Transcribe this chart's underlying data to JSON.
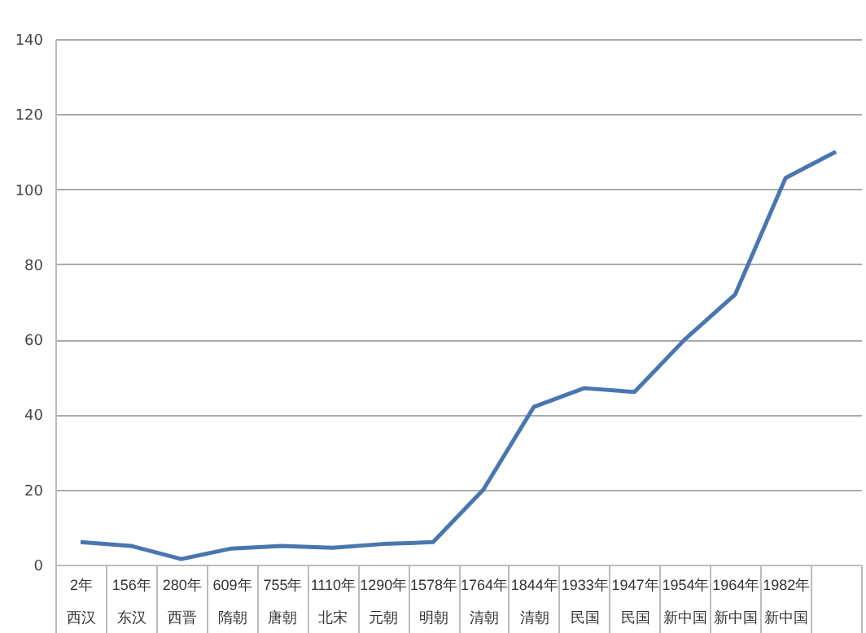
{
  "chart_data": {
    "type": "line",
    "categories": [
      "2年西汉",
      "156年东汉",
      "280年西晋",
      "609年隋朝",
      "755年唐朝",
      "1110年北宋",
      "1290年元朝",
      "1578年明朝",
      "1764年清朝",
      "1844年清朝",
      "1933年民国",
      "1947年民国",
      "1954年新中国",
      "1964年新中国",
      "1982年新中国",
      null
    ],
    "series": [
      {
        "color": "#4a76b0",
        "values": [
          6,
          5,
          1.5,
          4.3,
          5,
          4.5,
          5.5,
          6,
          20,
          42,
          47,
          46,
          60,
          72,
          103,
          110
        ]
      }
    ],
    "ylim": [
      0,
      140
    ],
    "yticks": [
      0,
      20,
      40,
      60,
      80,
      100,
      120,
      140
    ],
    "grid": "y",
    "legend": false,
    "marker": "none",
    "line_style": "solid"
  }
}
